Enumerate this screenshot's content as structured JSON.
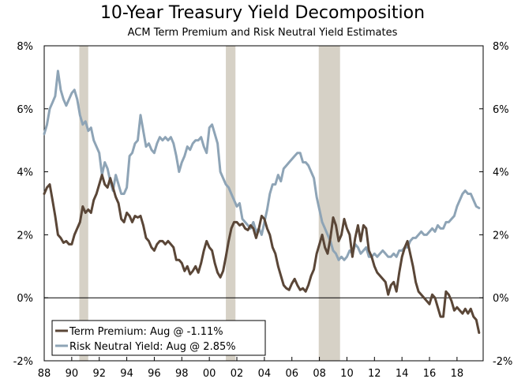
{
  "chart_data": {
    "type": "line",
    "title": "10-Year Treasury Yield Decomposition",
    "subtitle": "ACM Term Premium and Risk Neutral Yield Estimates",
    "xlabel": "",
    "ylabel": "",
    "xlim": [
      1988,
      2019.9
    ],
    "ylim": [
      -2,
      8
    ],
    "y_ticks": [
      {
        "value": -2,
        "label": "-2%"
      },
      {
        "value": 0,
        "label": "0%"
      },
      {
        "value": 2,
        "label": "2%"
      },
      {
        "value": 4,
        "label": "4%"
      },
      {
        "value": 6,
        "label": "6%"
      },
      {
        "value": 8,
        "label": "8%"
      }
    ],
    "x_ticks": [
      {
        "value": 1988,
        "label": "88"
      },
      {
        "value": 1990,
        "label": "90"
      },
      {
        "value": 1992,
        "label": "92"
      },
      {
        "value": 1994,
        "label": "94"
      },
      {
        "value": 1996,
        "label": "96"
      },
      {
        "value": 1998,
        "label": "98"
      },
      {
        "value": 2000,
        "label": "00"
      },
      {
        "value": 2002,
        "label": "02"
      },
      {
        "value": 2004,
        "label": "04"
      },
      {
        "value": 2006,
        "label": "06"
      },
      {
        "value": 2008,
        "label": "08"
      },
      {
        "value": 2010,
        "label": "10"
      },
      {
        "value": 2012,
        "label": "12"
      },
      {
        "value": 2014,
        "label": "14"
      },
      {
        "value": 2016,
        "label": "16"
      },
      {
        "value": 2018,
        "label": "18"
      }
    ],
    "recessions": [
      {
        "start": 1990.55,
        "end": 1991.2
      },
      {
        "start": 2001.2,
        "end": 2001.9
      },
      {
        "start": 2007.95,
        "end": 2009.5
      }
    ],
    "legend": {
      "position": "bottom-left",
      "entries": [
        {
          "label": "Term Premium: Aug @ -1.11%",
          "series": "term_premium"
        },
        {
          "label": "Risk Neutral Yield: Aug @ 2.85%",
          "series": "risk_neutral_yield"
        }
      ]
    },
    "series": [
      {
        "name": "Term Premium",
        "key": "term_premium",
        "color": "#5a4637",
        "x": [
          1988.0,
          1988.2,
          1988.4,
          1988.6,
          1988.8,
          1989.0,
          1989.2,
          1989.4,
          1989.6,
          1989.8,
          1990.0,
          1990.2,
          1990.4,
          1990.6,
          1990.8,
          1991.0,
          1991.2,
          1991.4,
          1991.6,
          1991.8,
          1992.0,
          1992.2,
          1992.4,
          1992.6,
          1992.8,
          1993.0,
          1993.2,
          1993.4,
          1993.6,
          1993.8,
          1994.0,
          1994.2,
          1994.4,
          1994.6,
          1994.8,
          1995.0,
          1995.2,
          1995.4,
          1995.6,
          1995.8,
          1996.0,
          1996.2,
          1996.4,
          1996.6,
          1996.8,
          1997.0,
          1997.2,
          1997.4,
          1997.6,
          1997.8,
          1998.0,
          1998.2,
          1998.4,
          1998.6,
          1998.8,
          1999.0,
          1999.2,
          1999.4,
          1999.6,
          1999.8,
          2000.0,
          2000.2,
          2000.4,
          2000.6,
          2000.8,
          2001.0,
          2001.2,
          2001.4,
          2001.6,
          2001.8,
          2002.0,
          2002.2,
          2002.4,
          2002.6,
          2002.8,
          2003.0,
          2003.2,
          2003.4,
          2003.6,
          2003.8,
          2004.0,
          2004.2,
          2004.4,
          2004.6,
          2004.8,
          2005.0,
          2005.2,
          2005.4,
          2005.6,
          2005.8,
          2006.0,
          2006.2,
          2006.4,
          2006.6,
          2006.8,
          2007.0,
          2007.2,
          2007.4,
          2007.6,
          2007.8,
          2008.0,
          2008.2,
          2008.4,
          2008.6,
          2008.8,
          2009.0,
          2009.2,
          2009.4,
          2009.6,
          2009.8,
          2010.0,
          2010.2,
          2010.4,
          2010.6,
          2010.8,
          2011.0,
          2011.2,
          2011.4,
          2011.6,
          2011.8,
          2012.0,
          2012.2,
          2012.4,
          2012.6,
          2012.8,
          2013.0,
          2013.2,
          2013.4,
          2013.6,
          2013.8,
          2014.0,
          2014.2,
          2014.4,
          2014.6,
          2014.8,
          2015.0,
          2015.2,
          2015.4,
          2015.6,
          2015.8,
          2016.0,
          2016.2,
          2016.4,
          2016.6,
          2016.8,
          2017.0,
          2017.2,
          2017.4,
          2017.6,
          2017.8,
          2018.0,
          2018.2,
          2018.4,
          2018.6,
          2018.8,
          2019.0,
          2019.2,
          2019.4,
          2019.6
        ],
        "values": [
          3.3,
          3.5,
          3.6,
          3.1,
          2.6,
          2.0,
          1.9,
          1.75,
          1.8,
          1.7,
          1.7,
          2.0,
          2.2,
          2.4,
          2.9,
          2.7,
          2.8,
          2.7,
          3.1,
          3.3,
          3.6,
          3.9,
          3.6,
          3.5,
          3.8,
          3.5,
          3.2,
          3.0,
          2.5,
          2.4,
          2.7,
          2.6,
          2.4,
          2.6,
          2.55,
          2.6,
          2.3,
          1.9,
          1.8,
          1.6,
          1.5,
          1.7,
          1.8,
          1.8,
          1.7,
          1.8,
          1.7,
          1.6,
          1.2,
          1.2,
          1.1,
          0.85,
          1.0,
          0.75,
          0.85,
          1.0,
          0.8,
          1.1,
          1.5,
          1.8,
          1.6,
          1.5,
          1.1,
          0.8,
          0.65,
          0.85,
          1.3,
          1.8,
          2.2,
          2.4,
          2.4,
          2.3,
          2.35,
          2.2,
          2.15,
          2.3,
          2.2,
          1.9,
          2.2,
          2.6,
          2.5,
          2.2,
          2.0,
          1.6,
          1.4,
          1.0,
          0.7,
          0.4,
          0.3,
          0.25,
          0.45,
          0.6,
          0.4,
          0.25,
          0.3,
          0.2,
          0.4,
          0.7,
          0.9,
          1.4,
          1.7,
          2.0,
          1.6,
          1.4,
          1.9,
          2.55,
          2.3,
          1.8,
          2.0,
          2.5,
          2.2,
          2.0,
          1.3,
          1.9,
          2.3,
          1.8,
          2.3,
          2.2,
          1.5,
          1.3,
          1.0,
          0.8,
          0.7,
          0.6,
          0.5,
          0.1,
          0.4,
          0.5,
          0.2,
          0.8,
          1.3,
          1.6,
          1.8,
          1.4,
          1.0,
          0.5,
          0.2,
          0.1,
          0.0,
          -0.1,
          -0.2,
          0.1,
          0.0,
          -0.3,
          -0.6,
          -0.6,
          0.2,
          0.1,
          -0.1,
          -0.4,
          -0.3,
          -0.4,
          -0.5,
          -0.35,
          -0.5,
          -0.35,
          -0.6,
          -0.7,
          -1.11
        ]
      },
      {
        "name": "Risk Neutral Yield",
        "key": "risk_neutral_yield",
        "color": "#8ea4b6",
        "x": [
          1988.0,
          1988.2,
          1988.4,
          1988.6,
          1988.8,
          1989.0,
          1989.2,
          1989.4,
          1989.6,
          1989.8,
          1990.0,
          1990.2,
          1990.4,
          1990.6,
          1990.8,
          1991.0,
          1991.2,
          1991.4,
          1991.6,
          1991.8,
          1992.0,
          1992.2,
          1992.4,
          1992.6,
          1992.8,
          1993.0,
          1993.2,
          1993.4,
          1993.6,
          1993.8,
          1994.0,
          1994.2,
          1994.4,
          1994.6,
          1994.8,
          1995.0,
          1995.2,
          1995.4,
          1995.6,
          1995.8,
          1996.0,
          1996.2,
          1996.4,
          1996.6,
          1996.8,
          1997.0,
          1997.2,
          1997.4,
          1997.6,
          1997.8,
          1998.0,
          1998.2,
          1998.4,
          1998.6,
          1998.8,
          1999.0,
          1999.2,
          1999.4,
          1999.6,
          1999.8,
          2000.0,
          2000.2,
          2000.4,
          2000.6,
          2000.8,
          2001.0,
          2001.2,
          2001.4,
          2001.6,
          2001.8,
          2002.0,
          2002.2,
          2002.4,
          2002.6,
          2002.8,
          2003.0,
          2003.2,
          2003.4,
          2003.6,
          2003.8,
          2004.0,
          2004.2,
          2004.4,
          2004.6,
          2004.8,
          2005.0,
          2005.2,
          2005.4,
          2005.6,
          2005.8,
          2006.0,
          2006.2,
          2006.4,
          2006.6,
          2006.8,
          2007.0,
          2007.2,
          2007.4,
          2007.6,
          2007.8,
          2008.0,
          2008.2,
          2008.4,
          2008.6,
          2008.8,
          2009.0,
          2009.2,
          2009.4,
          2009.6,
          2009.8,
          2010.0,
          2010.2,
          2010.4,
          2010.6,
          2010.8,
          2011.0,
          2011.2,
          2011.4,
          2011.6,
          2011.8,
          2012.0,
          2012.2,
          2012.4,
          2012.6,
          2012.8,
          2013.0,
          2013.2,
          2013.4,
          2013.6,
          2013.8,
          2014.0,
          2014.2,
          2014.4,
          2014.6,
          2014.8,
          2015.0,
          2015.2,
          2015.4,
          2015.6,
          2015.8,
          2016.0,
          2016.2,
          2016.4,
          2016.6,
          2016.8,
          2017.0,
          2017.2,
          2017.4,
          2017.6,
          2017.8,
          2018.0,
          2018.2,
          2018.4,
          2018.6,
          2018.8,
          2019.0,
          2019.2,
          2019.4,
          2019.6
        ],
        "values": [
          5.2,
          5.5,
          6.0,
          6.2,
          6.4,
          7.2,
          6.6,
          6.3,
          6.1,
          6.3,
          6.5,
          6.6,
          6.3,
          5.8,
          5.5,
          5.6,
          5.3,
          5.4,
          5.0,
          4.8,
          4.6,
          3.9,
          4.3,
          4.1,
          3.7,
          3.4,
          3.9,
          3.6,
          3.3,
          3.3,
          3.5,
          4.5,
          4.6,
          4.9,
          5.0,
          5.8,
          5.3,
          4.8,
          4.9,
          4.7,
          4.6,
          4.9,
          5.1,
          5.0,
          5.1,
          5.0,
          5.1,
          4.9,
          4.5,
          4.0,
          4.3,
          4.5,
          4.8,
          4.7,
          4.9,
          5.0,
          5.0,
          5.1,
          4.8,
          4.6,
          5.4,
          5.5,
          5.2,
          4.9,
          4.0,
          3.8,
          3.6,
          3.5,
          3.3,
          3.1,
          2.9,
          3.0,
          2.5,
          2.4,
          2.3,
          2.2,
          2.4,
          2.1,
          2.2,
          2.0,
          2.4,
          2.8,
          3.3,
          3.6,
          3.6,
          3.9,
          3.7,
          4.1,
          4.2,
          4.3,
          4.4,
          4.5,
          4.6,
          4.6,
          4.3,
          4.3,
          4.2,
          4.0,
          3.8,
          3.2,
          2.8,
          2.4,
          2.2,
          2.0,
          1.8,
          1.5,
          1.4,
          1.2,
          1.3,
          1.2,
          1.3,
          1.5,
          1.4,
          1.7,
          1.6,
          1.4,
          1.5,
          1.6,
          1.3,
          1.3,
          1.4,
          1.3,
          1.4,
          1.5,
          1.4,
          1.3,
          1.3,
          1.4,
          1.3,
          1.5,
          1.5,
          1.6,
          1.6,
          1.8,
          1.9,
          1.9,
          2.0,
          2.1,
          2.0,
          2.0,
          2.1,
          2.2,
          2.1,
          2.3,
          2.2,
          2.2,
          2.4,
          2.4,
          2.5,
          2.6,
          2.9,
          3.1,
          3.3,
          3.4,
          3.3,
          3.3,
          3.1,
          2.9,
          2.85
        ]
      }
    ]
  }
}
